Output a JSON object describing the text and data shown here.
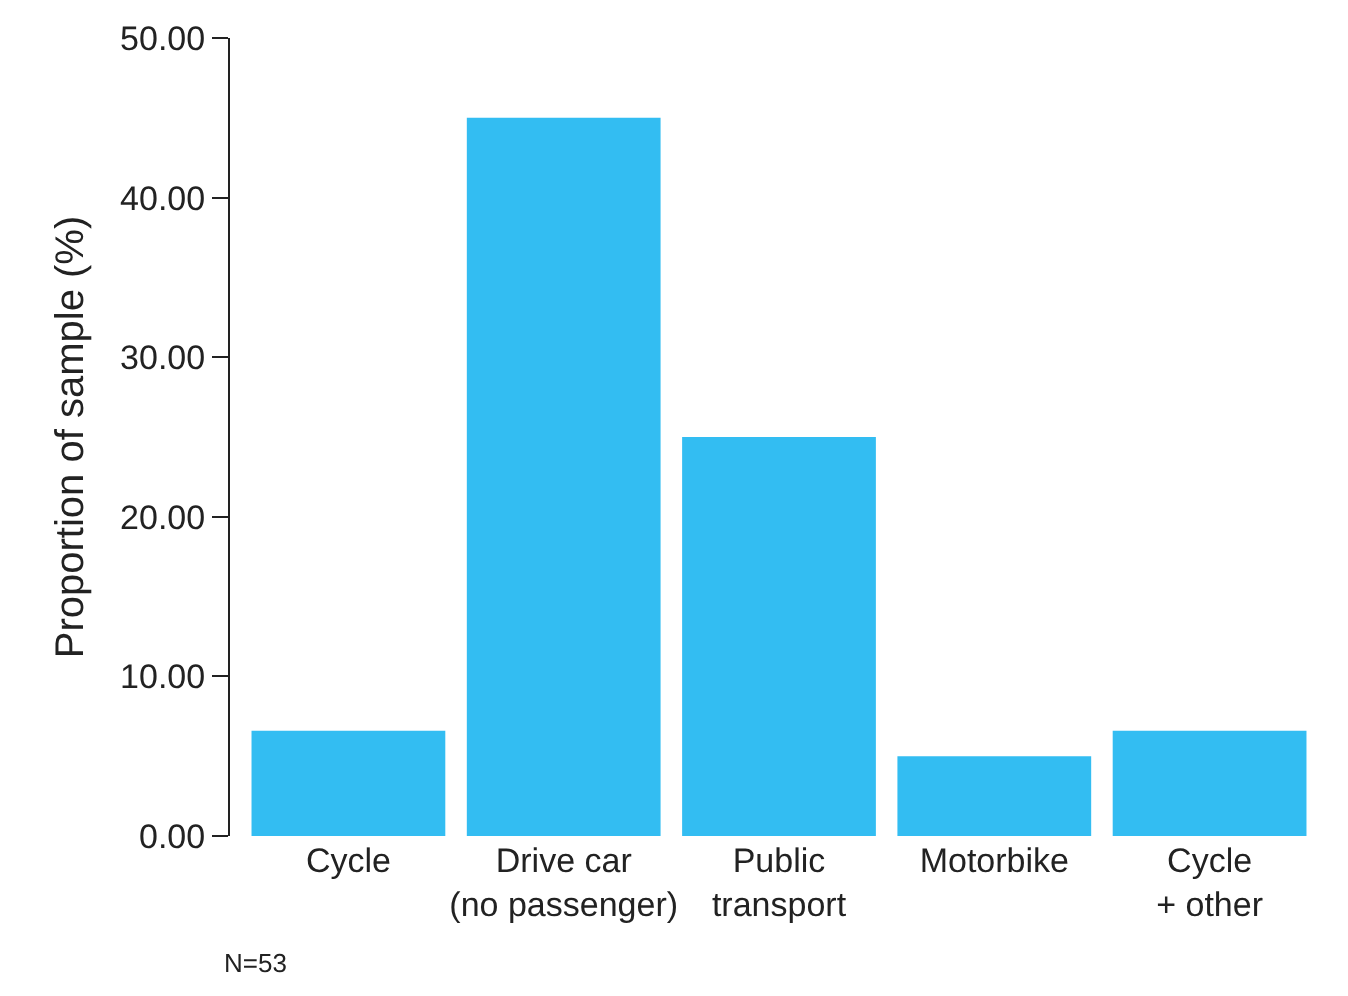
{
  "chart_data": {
    "type": "bar",
    "ylabel": "Proportion of sample (%)",
    "categories": [
      "Cycle",
      "Drive car\n(no passenger)",
      "Public\ntransport",
      "Motorbike",
      "Cycle\n+ other"
    ],
    "values": [
      6.6,
      45,
      25,
      5,
      6.6
    ],
    "color": "#33bdf2",
    "ylim": [
      0,
      50
    ],
    "yticks": [
      {
        "value": 0,
        "label": "0.00"
      },
      {
        "value": 10,
        "label": "10.00"
      },
      {
        "value": 20,
        "label": "20.00"
      },
      {
        "value": 30,
        "label": "30.00"
      },
      {
        "value": 40,
        "label": "40.00"
      },
      {
        "value": 50,
        "label": "50.00"
      }
    ],
    "annotations": [
      "N=53"
    ]
  }
}
